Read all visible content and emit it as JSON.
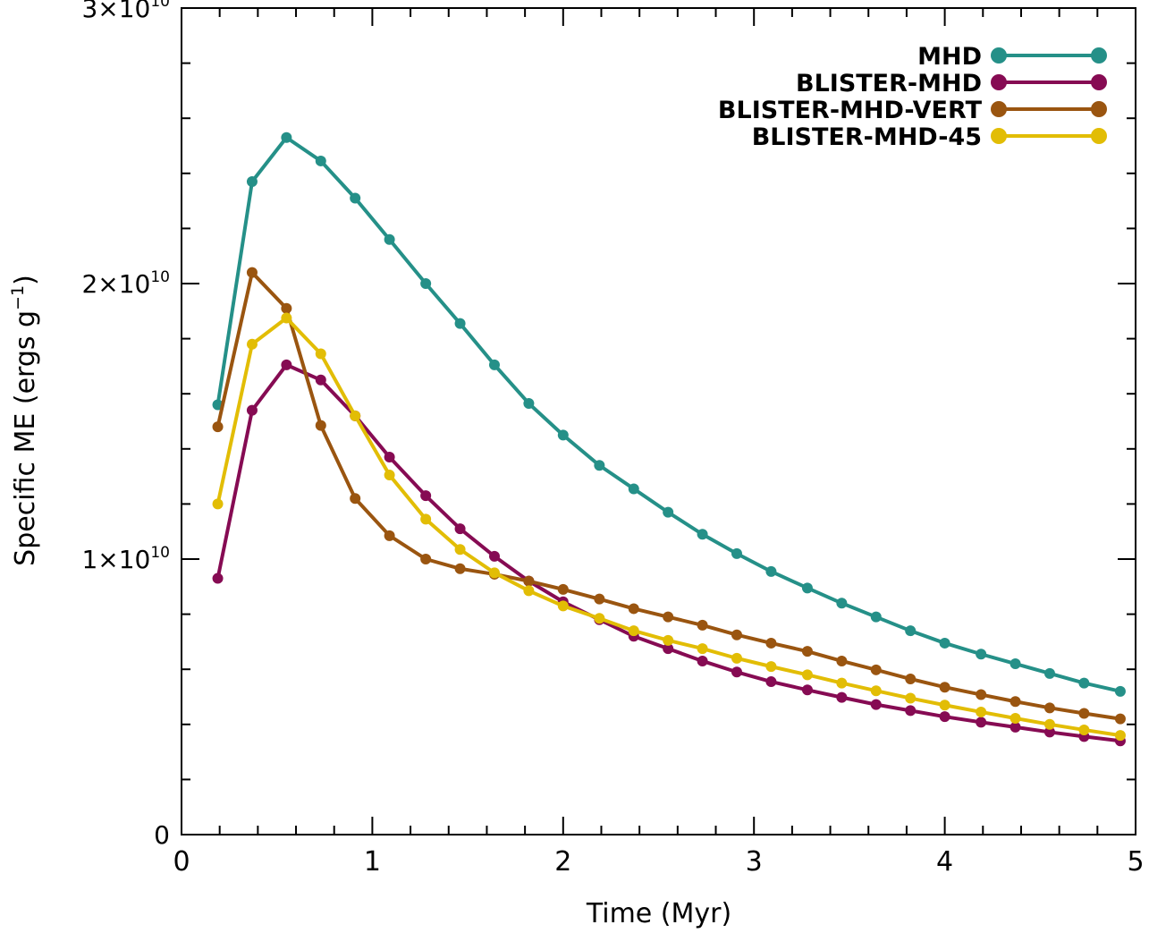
{
  "chart_data": {
    "type": "line",
    "title": "",
    "xlabel": "Time (Myr)",
    "ylabel": "Specific ME (ergs g",
    "ylabel_exp": "−1",
    "ylabel_close": ")",
    "xlim": [
      0,
      5
    ],
    "ylim": [
      0,
      30000000000
    ],
    "xticks": [
      0,
      1,
      2,
      3,
      4,
      5
    ],
    "xtick_labels": [
      "0",
      "1",
      "2",
      "3",
      "4",
      "5"
    ],
    "yticks": [
      0,
      10000000000,
      20000000000,
      30000000000
    ],
    "ytick_labels": [
      {
        "mant": "0",
        "exp": ""
      },
      {
        "mant": "1×10",
        "exp": "10"
      },
      {
        "mant": "2×10",
        "exp": "10"
      },
      {
        "mant": "3×10",
        "exp": "10"
      }
    ],
    "legend_position": "top-right",
    "x": [
      0.19,
      0.37,
      0.55,
      0.73,
      0.91,
      1.09,
      1.28,
      1.46,
      1.64,
      1.82,
      2.0,
      2.19,
      2.37,
      2.55,
      2.73,
      2.91,
      3.09,
      3.28,
      3.46,
      3.64,
      3.82,
      4.0,
      4.19,
      4.37,
      4.55,
      4.73,
      4.92
    ],
    "series": [
      {
        "name": "MHD",
        "color": "#259088",
        "values": [
          15.6,
          23.7,
          25.3,
          24.45,
          23.1,
          21.6,
          20.0,
          18.55,
          17.05,
          15.65,
          14.5,
          13.4,
          12.55,
          11.7,
          10.9,
          10.2,
          9.55,
          8.95,
          8.4,
          7.9,
          7.4,
          6.95,
          6.55,
          6.2,
          5.85,
          5.5,
          5.2
        ]
      },
      {
        "name": "BLISTER-MHD",
        "color": "#860B53",
        "values": [
          9.3,
          15.4,
          17.05,
          16.5,
          15.2,
          13.7,
          12.3,
          11.1,
          10.1,
          9.2,
          8.45,
          7.8,
          7.2,
          6.75,
          6.3,
          5.9,
          5.55,
          5.25,
          4.98,
          4.72,
          4.5,
          4.28,
          4.08,
          3.9,
          3.72,
          3.56,
          3.4
        ]
      },
      {
        "name": "BLISTER-MHD-VERT",
        "color": "#9A5510",
        "values": [
          14.8,
          20.4,
          19.1,
          14.85,
          12.2,
          10.85,
          10.0,
          9.65,
          9.45,
          9.2,
          8.9,
          8.55,
          8.2,
          7.9,
          7.6,
          7.25,
          6.95,
          6.65,
          6.3,
          5.98,
          5.65,
          5.35,
          5.08,
          4.83,
          4.6,
          4.4,
          4.2
        ]
      },
      {
        "name": "BLISTER-MHD-45",
        "color": "#E2BD05",
        "values": [
          12.0,
          17.8,
          18.75,
          17.45,
          15.2,
          13.05,
          11.45,
          10.35,
          9.5,
          8.85,
          8.3,
          7.85,
          7.4,
          7.05,
          6.75,
          6.4,
          6.1,
          5.8,
          5.5,
          5.22,
          4.95,
          4.7,
          4.45,
          4.22,
          4.0,
          3.8,
          3.6
        ]
      }
    ],
    "value_scale": 1000000000
  }
}
